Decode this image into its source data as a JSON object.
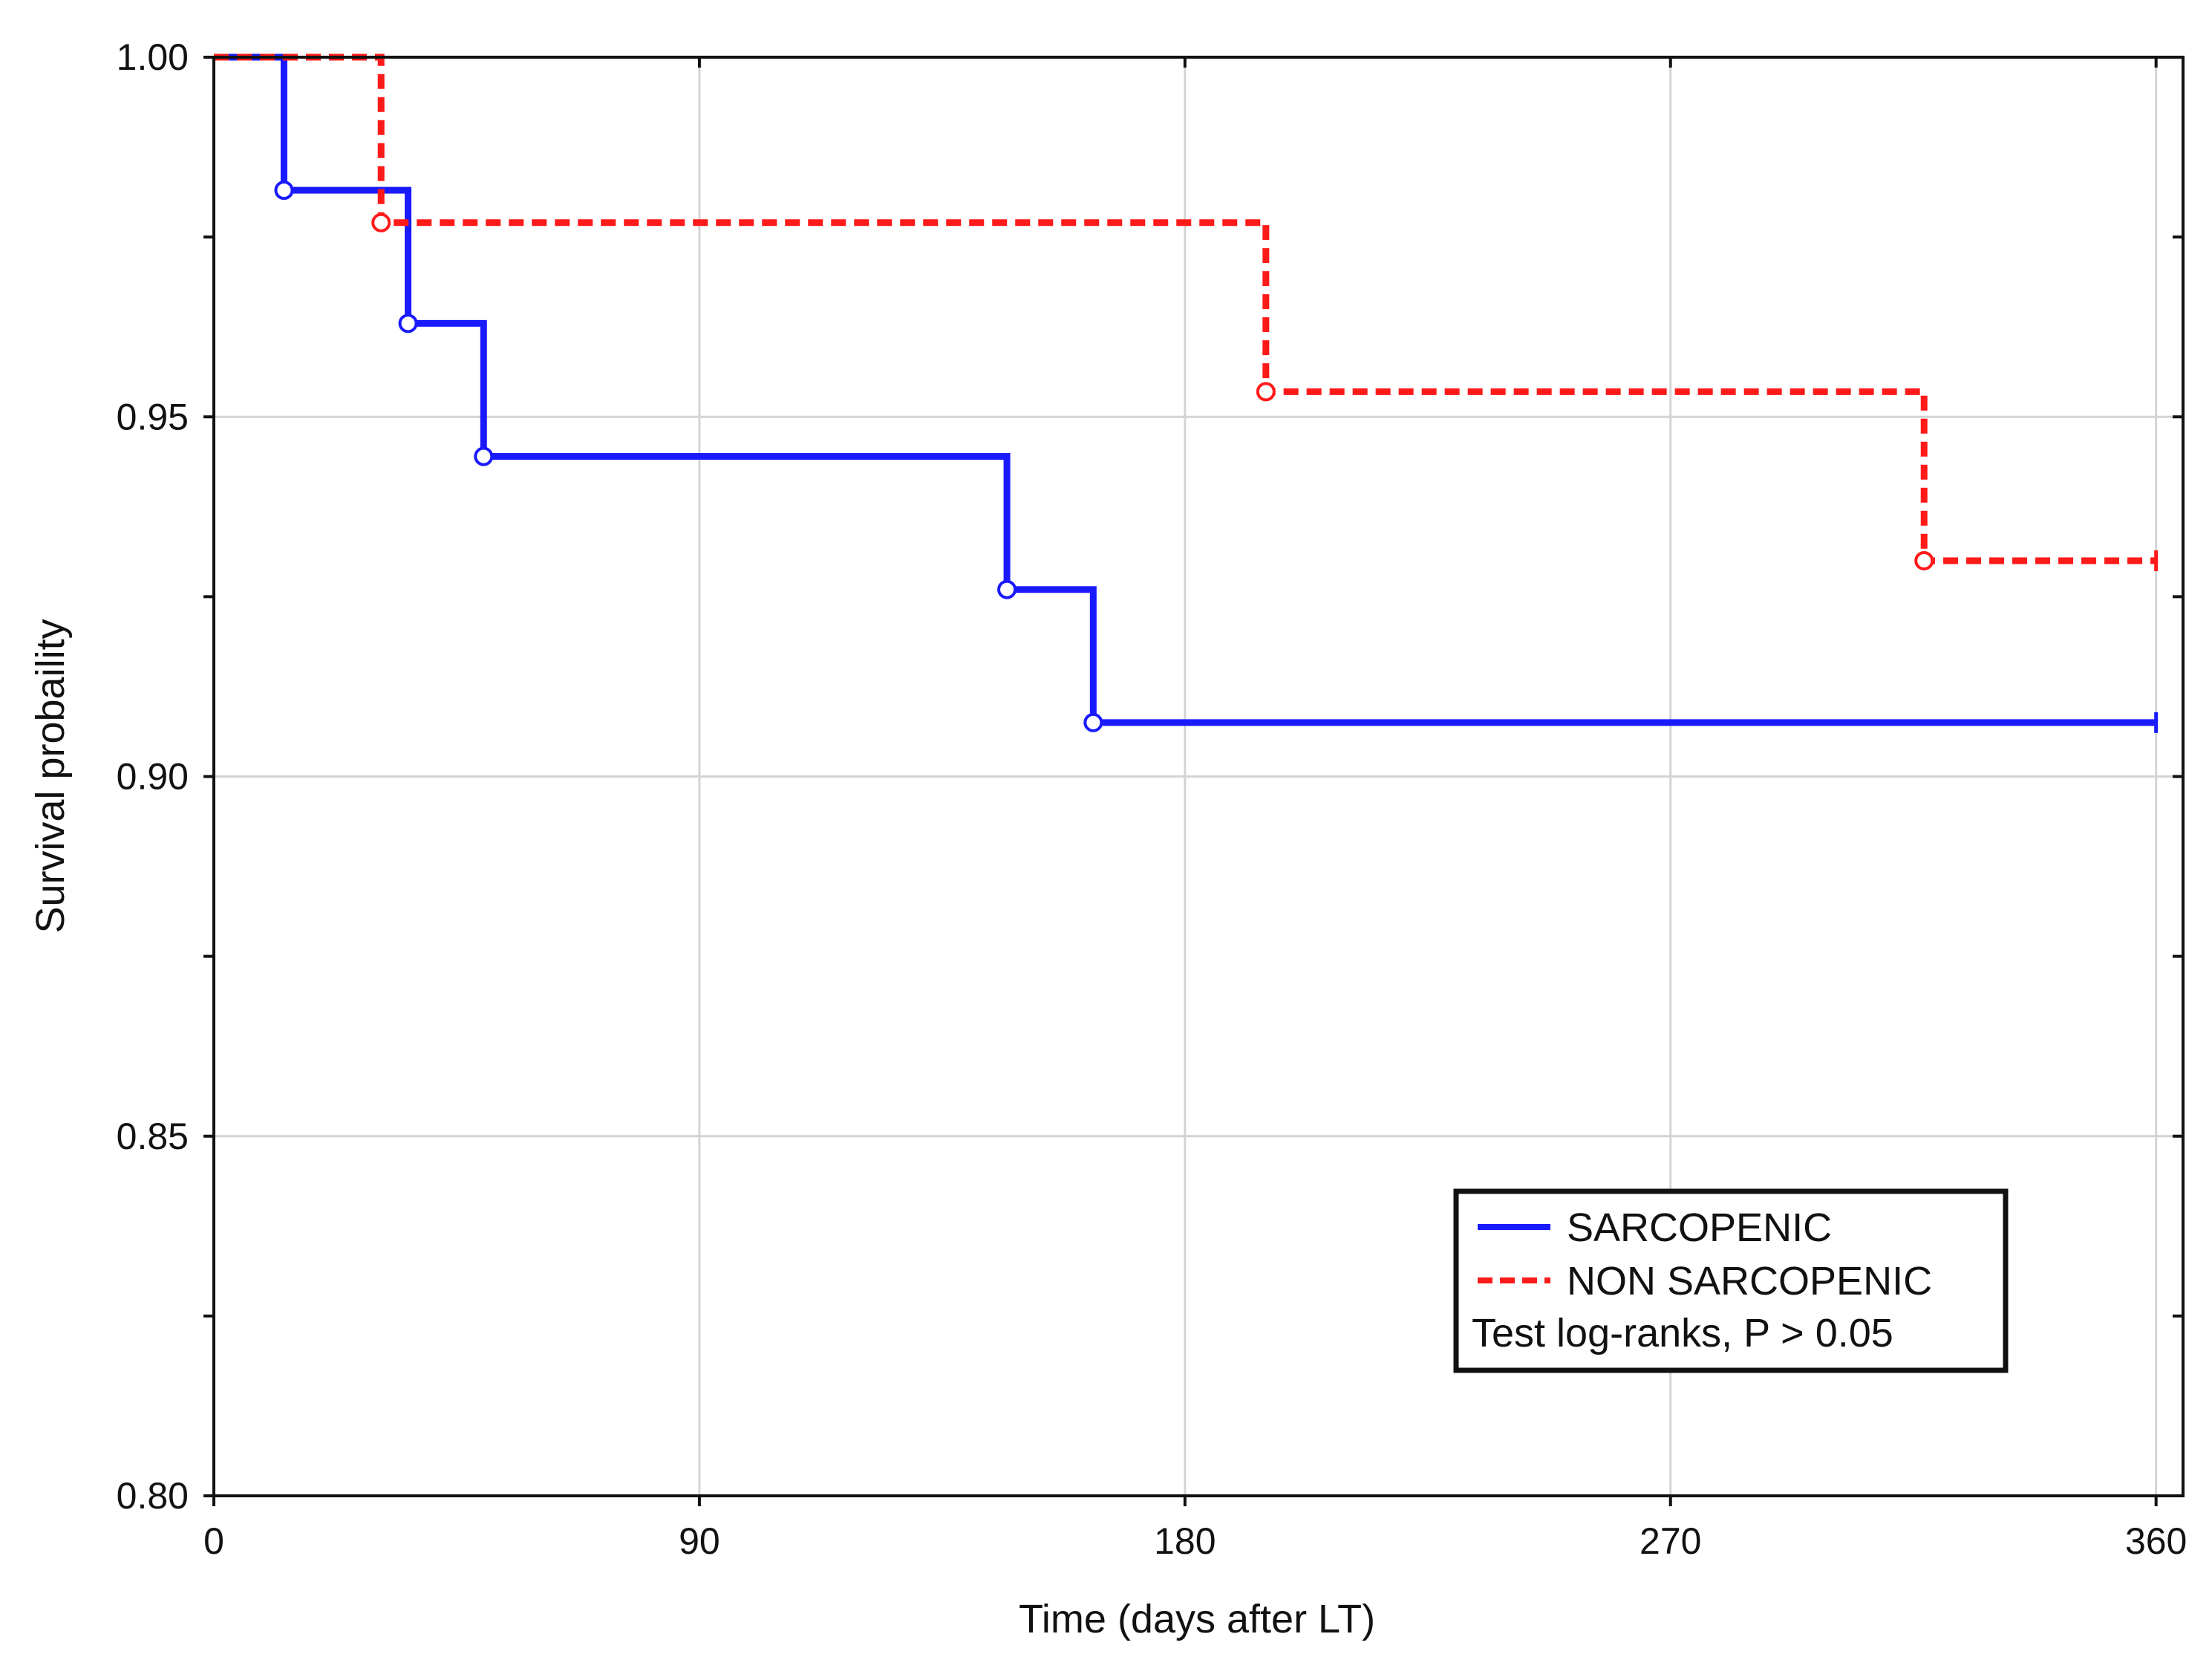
{
  "chart_data": {
    "type": "line",
    "step": true,
    "xlabel": "Time (days after LT)",
    "ylabel": "Survival probaility",
    "xlim": [
      0,
      365
    ],
    "ylim": [
      0.8,
      1.0
    ],
    "xticks": [
      0,
      90,
      180,
      270,
      360
    ],
    "xtick_labels": [
      "0",
      "90",
      "180",
      "270",
      "360"
    ],
    "yticks": [
      0.8,
      0.85,
      0.9,
      0.95,
      1.0
    ],
    "ytick_labels": [
      "0.80",
      "0.85",
      "0.90",
      "0.95",
      "1.00"
    ],
    "grid": true,
    "legend_position": "bottom-right",
    "annotation": "Test log-ranks, P > 0.05",
    "series": [
      {
        "name": "SARCOPENIC",
        "color": "#1a1aff",
        "dash": "solid",
        "x": [
          0,
          13,
          36,
          50,
          147,
          163,
          360
        ],
        "y": [
          1.0,
          0.9815,
          0.963,
          0.9445,
          0.926,
          0.9075,
          0.9075
        ],
        "events_x": [
          13,
          36,
          50,
          147,
          163
        ],
        "events_y": [
          0.9815,
          0.963,
          0.9445,
          0.926,
          0.9075
        ],
        "censor_x": [
          360
        ],
        "censor_y": [
          0.9075
        ]
      },
      {
        "name": "NON SARCOPENIC",
        "color": "#ff1a1a",
        "dash": "dashed",
        "x": [
          0,
          31,
          195,
          317,
          360
        ],
        "y": [
          1.0,
          0.977,
          0.9535,
          0.93,
          0.93
        ],
        "events_x": [
          31,
          195,
          317
        ],
        "events_y": [
          0.977,
          0.9535,
          0.93
        ],
        "censor_x": [
          360
        ],
        "censor_y": [
          0.93
        ]
      }
    ]
  }
}
